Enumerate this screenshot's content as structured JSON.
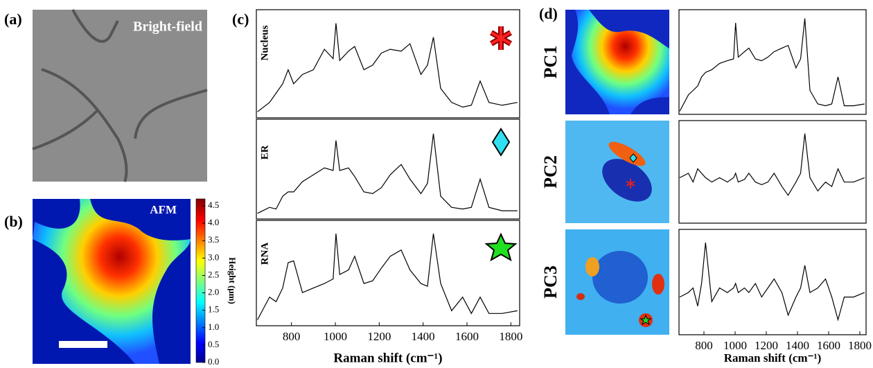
{
  "panels": {
    "a": {
      "label": "(a)",
      "title": "Bright-field"
    },
    "b": {
      "label": "(b)",
      "title": "AFM",
      "colorbar": {
        "title": "Height (μm)",
        "lim": [
          0,
          4.7
        ],
        "ticks": [
          {
            "value": 0,
            "label": "0.0"
          },
          0.5,
          {
            "value": 1,
            "label": "1.0"
          },
          1.5,
          {
            "value": 2,
            "label": "2.0"
          },
          2.5,
          {
            "value": 3,
            "label": "3.0"
          },
          3.5,
          {
            "value": 4,
            "label": "4.0"
          },
          4.5
        ]
      }
    },
    "c": {
      "label": "(c)"
    },
    "d": {
      "label": "(d)"
    }
  },
  "chart_data": [
    {
      "type": "line",
      "label": "Nucleus",
      "color": "#000000",
      "xlim": [
        640,
        1840
      ],
      "ylim": [
        0,
        1.1
      ],
      "x": [
        645,
        700,
        730,
        760,
        785,
        810,
        850,
        900,
        950,
        990,
        1003,
        1020,
        1060,
        1088,
        1130,
        1170,
        1210,
        1250,
        1300,
        1340,
        1390,
        1420,
        1447,
        1480,
        1530,
        1580,
        1620,
        1660,
        1700,
        1760,
        1830
      ],
      "values": [
        0.05,
        0.15,
        0.25,
        0.35,
        0.5,
        0.35,
        0.45,
        0.5,
        0.72,
        0.62,
        1.0,
        0.6,
        0.7,
        0.75,
        0.5,
        0.55,
        0.68,
        0.72,
        0.7,
        0.78,
        0.45,
        0.55,
        0.85,
        0.3,
        0.15,
        0.1,
        0.12,
        0.38,
        0.15,
        0.12,
        0.15
      ]
    },
    {
      "type": "line",
      "label": "ER",
      "color": "#000000",
      "xlim": [
        640,
        1840
      ],
      "ylim": [
        0,
        1.1
      ],
      "x": [
        645,
        700,
        730,
        760,
        785,
        810,
        850,
        900,
        950,
        990,
        1003,
        1020,
        1060,
        1088,
        1130,
        1170,
        1210,
        1250,
        1300,
        1340,
        1390,
        1420,
        1447,
        1480,
        1530,
        1580,
        1620,
        1660,
        1700,
        1760,
        1830
      ],
      "values": [
        0.05,
        0.12,
        0.1,
        0.25,
        0.3,
        0.3,
        0.42,
        0.5,
        0.58,
        0.55,
        0.9,
        0.55,
        0.58,
        0.48,
        0.3,
        0.28,
        0.35,
        0.5,
        0.62,
        0.45,
        0.28,
        0.4,
        0.98,
        0.25,
        0.12,
        0.1,
        0.12,
        0.45,
        0.12,
        0.08,
        0.08
      ]
    },
    {
      "type": "line",
      "label": "RNA",
      "color": "#000000",
      "xlim": [
        640,
        1840
      ],
      "ylim": [
        0,
        1.1
      ],
      "xticks": [
        800,
        1000,
        1200,
        1400,
        1600,
        1800
      ],
      "x_label": "Raman shift (cm⁻¹)",
      "x": [
        645,
        700,
        730,
        760,
        785,
        810,
        850,
        900,
        950,
        990,
        1003,
        1020,
        1060,
        1088,
        1130,
        1170,
        1210,
        1250,
        1300,
        1340,
        1390,
        1420,
        1447,
        1480,
        1530,
        1580,
        1620,
        1660,
        1700,
        1760,
        1830
      ],
      "values": [
        0.05,
        0.3,
        0.25,
        0.4,
        0.68,
        0.7,
        0.35,
        0.4,
        0.45,
        0.5,
        1.0,
        0.55,
        0.6,
        0.75,
        0.45,
        0.48,
        0.62,
        0.75,
        0.82,
        0.6,
        0.45,
        0.42,
        1.0,
        0.45,
        0.15,
        0.3,
        0.12,
        0.3,
        0.12,
        0.12,
        0.15
      ]
    },
    {
      "type": "line",
      "label": "PC1",
      "color": "#000000",
      "xlim": [
        640,
        1840
      ],
      "ylim": [
        0,
        1.1
      ],
      "x": [
        645,
        700,
        730,
        760,
        785,
        810,
        850,
        900,
        950,
        990,
        1003,
        1020,
        1060,
        1088,
        1130,
        1170,
        1210,
        1250,
        1300,
        1340,
        1390,
        1420,
        1447,
        1480,
        1530,
        1580,
        1620,
        1660,
        1700,
        1760,
        1830
      ],
      "values": [
        0.02,
        0.2,
        0.25,
        0.3,
        0.4,
        0.45,
        0.48,
        0.55,
        0.58,
        0.6,
        1.0,
        0.62,
        0.68,
        0.72,
        0.6,
        0.58,
        0.62,
        0.68,
        0.72,
        0.75,
        0.5,
        0.6,
        1.05,
        0.25,
        0.1,
        0.08,
        0.1,
        0.4,
        0.08,
        0.08,
        0.1
      ]
    },
    {
      "type": "line",
      "label": "PC2",
      "color": "#000000",
      "xlim": [
        640,
        1840
      ],
      "ylim": [
        0,
        1.1
      ],
      "x": [
        645,
        700,
        730,
        760,
        785,
        810,
        850,
        900,
        950,
        990,
        1003,
        1020,
        1060,
        1088,
        1130,
        1170,
        1210,
        1250,
        1300,
        1340,
        1390,
        1420,
        1447,
        1480,
        1530,
        1580,
        1620,
        1660,
        1700,
        1760,
        1830
      ],
      "values": [
        0.5,
        0.55,
        0.45,
        0.6,
        0.55,
        0.5,
        0.45,
        0.5,
        0.45,
        0.5,
        0.55,
        0.45,
        0.48,
        0.55,
        0.45,
        0.42,
        0.45,
        0.55,
        0.4,
        0.3,
        0.45,
        0.55,
        1.0,
        0.5,
        0.35,
        0.45,
        0.4,
        0.6,
        0.45,
        0.45,
        0.5
      ]
    },
    {
      "type": "line",
      "label": "PC3",
      "color": "#000000",
      "xlim": [
        640,
        1840
      ],
      "ylim": [
        0,
        1.1
      ],
      "xticks": [
        800,
        1000,
        1200,
        1400,
        1600,
        1800
      ],
      "x_label": "Raman shift (cm⁻¹)",
      "x": [
        645,
        700,
        730,
        760,
        785,
        810,
        850,
        900,
        950,
        990,
        1003,
        1020,
        1060,
        1088,
        1130,
        1170,
        1210,
        1250,
        1300,
        1340,
        1390,
        1420,
        1447,
        1480,
        1530,
        1580,
        1620,
        1660,
        1700,
        1760,
        1830
      ],
      "values": [
        0.4,
        0.45,
        0.5,
        0.3,
        0.55,
        1.0,
        0.35,
        0.5,
        0.45,
        0.5,
        0.55,
        0.45,
        0.5,
        0.45,
        0.55,
        0.4,
        0.5,
        0.6,
        0.45,
        0.2,
        0.4,
        0.5,
        0.75,
        0.45,
        0.5,
        0.6,
        0.4,
        0.15,
        0.4,
        0.4,
        0.45
      ]
    }
  ]
}
